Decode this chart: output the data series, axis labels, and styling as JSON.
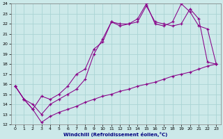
{
  "xlabel": "Windchill (Refroidissement éolien,°C)",
  "bg_color": "#cce9e9",
  "grid_color": "#aad4d4",
  "line_color": "#880088",
  "xlim": [
    -0.5,
    23.5
  ],
  "ylim": [
    12,
    24
  ],
  "xticks": [
    0,
    1,
    2,
    3,
    4,
    5,
    6,
    7,
    8,
    9,
    10,
    11,
    12,
    13,
    14,
    15,
    16,
    17,
    18,
    19,
    20,
    21,
    22,
    23
  ],
  "yticks": [
    12,
    13,
    14,
    15,
    16,
    17,
    18,
    19,
    20,
    21,
    22,
    23,
    24
  ],
  "line1_x": [
    0,
    1,
    2,
    3,
    4,
    5,
    6,
    7,
    8,
    9,
    10,
    11,
    12,
    13,
    14,
    15,
    16,
    17,
    18,
    19,
    20,
    21,
    22,
    23
  ],
  "line1_y": [
    15.8,
    14.5,
    13.5,
    14.8,
    14.5,
    15.0,
    15.8,
    17.0,
    17.5,
    19.5,
    20.2,
    22.2,
    22.0,
    22.0,
    22.5,
    24.0,
    22.0,
    21.8,
    22.2,
    24.0,
    23.2,
    21.8,
    21.5,
    18.0
  ],
  "line2_x": [
    0,
    1,
    2,
    3,
    4,
    5,
    6,
    7,
    8,
    9,
    10,
    11,
    12,
    13,
    14,
    15,
    16,
    17,
    18,
    19,
    20,
    21,
    22,
    23
  ],
  "line2_y": [
    15.8,
    14.5,
    14.0,
    13.0,
    14.0,
    14.5,
    15.0,
    15.5,
    16.5,
    19.0,
    20.5,
    22.2,
    21.8,
    22.0,
    22.2,
    23.8,
    22.2,
    22.0,
    21.8,
    22.0,
    23.5,
    22.5,
    18.2,
    18.0
  ],
  "line3_x": [
    0,
    1,
    2,
    3,
    4,
    5,
    6,
    7,
    8,
    9,
    10,
    11,
    12,
    13,
    14,
    15,
    16,
    17,
    18,
    19,
    20,
    21,
    22,
    23
  ],
  "line3_y": [
    15.8,
    14.5,
    13.5,
    12.2,
    12.8,
    13.2,
    13.5,
    13.8,
    14.2,
    14.5,
    14.8,
    15.0,
    15.3,
    15.5,
    15.8,
    16.0,
    16.2,
    16.5,
    16.8,
    17.0,
    17.2,
    17.5,
    17.8,
    18.0
  ]
}
